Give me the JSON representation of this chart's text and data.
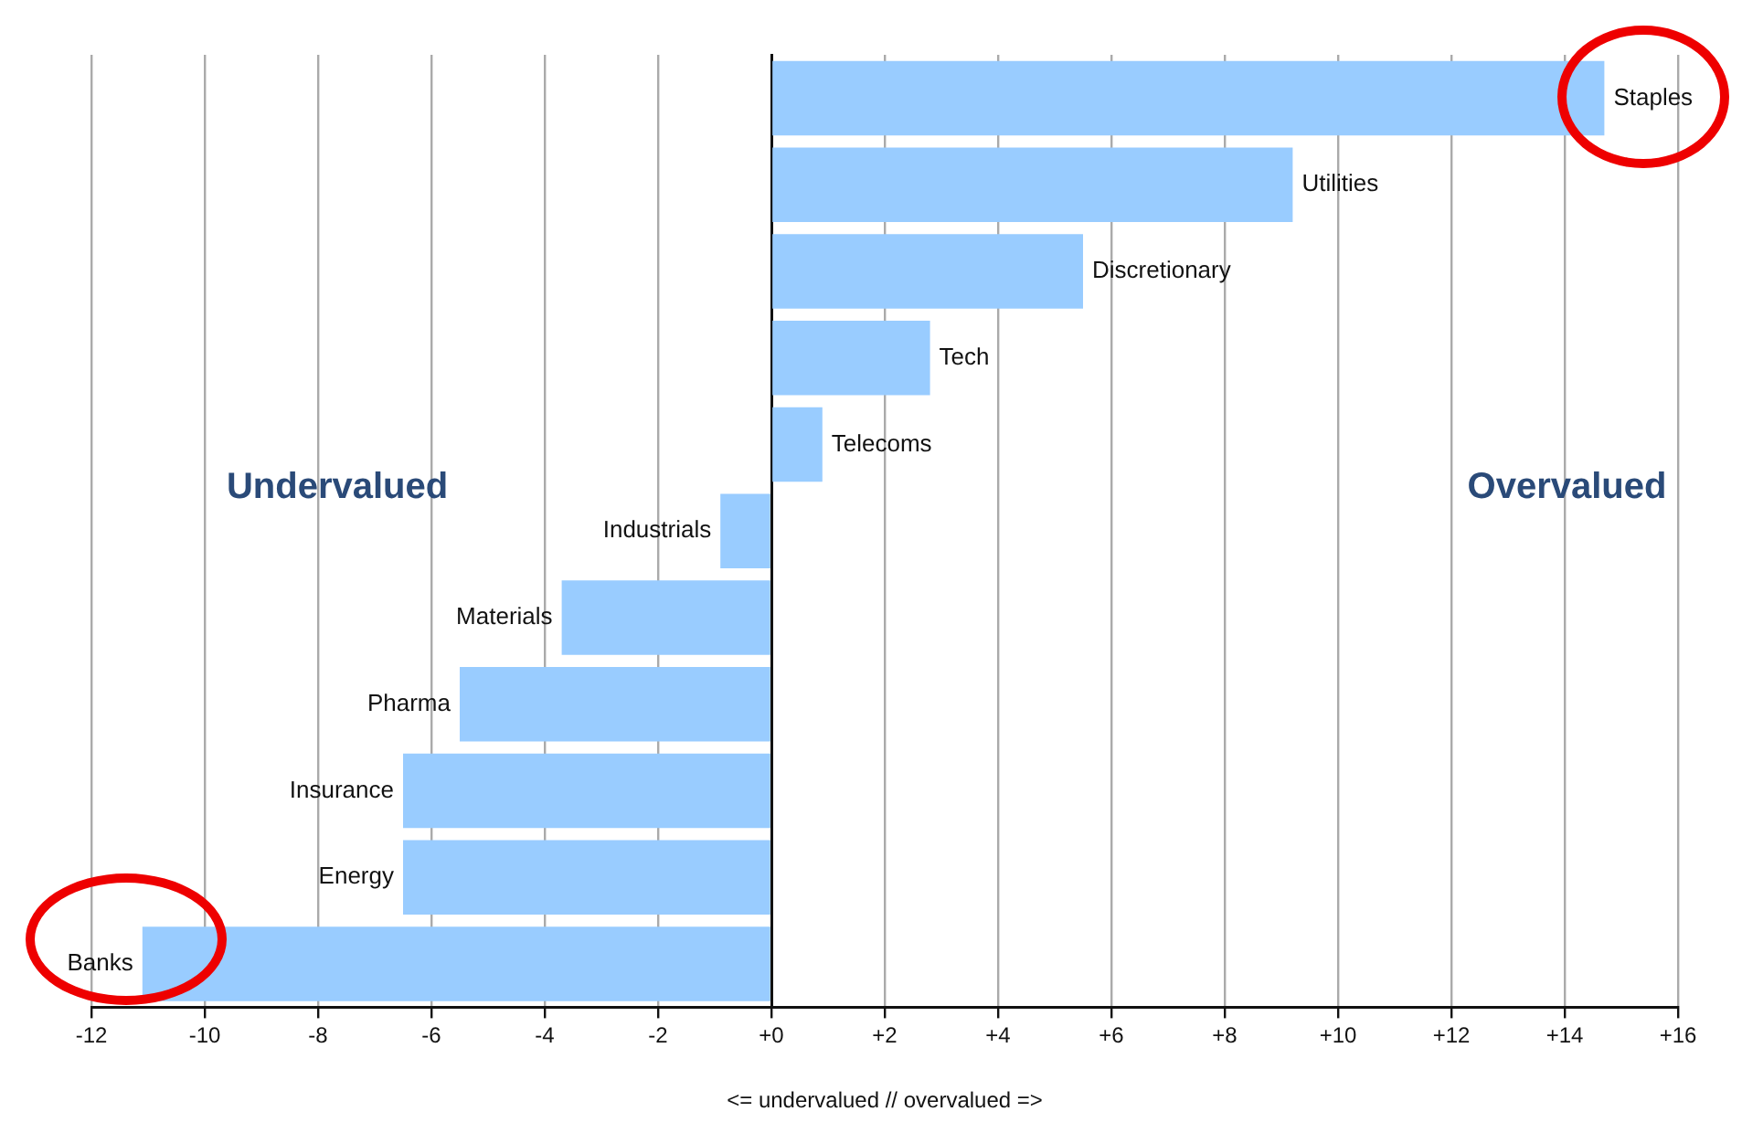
{
  "chart_data": {
    "type": "bar",
    "orientation": "horizontal",
    "xlabel": "<= undervalued // overvalued =>",
    "annotations": [
      "Undervalued",
      "Overvalued"
    ],
    "categories": [
      "Staples",
      "Utilities",
      "Discretionary",
      "Tech",
      "Telecoms",
      "Industrials",
      "Materials",
      "Pharma",
      "Insurance",
      "Energy",
      "Banks"
    ],
    "values": [
      14.7,
      9.2,
      5.5,
      2.8,
      0.9,
      -0.9,
      -3.7,
      -5.5,
      -6.5,
      -6.5,
      -11.1
    ],
    "color": "#99ccff",
    "xlim": [
      -12,
      16
    ],
    "xticks": [
      -12,
      -10,
      -8,
      -6,
      -4,
      -2,
      {
        "value": 0,
        "label": "+0"
      },
      {
        "value": 2,
        "label": "+2"
      },
      {
        "value": 4,
        "label": "+4"
      },
      {
        "value": 6,
        "label": "+6"
      },
      {
        "value": 8,
        "label": "+8"
      },
      {
        "value": 10,
        "label": "+10"
      },
      {
        "value": 12,
        "label": "+12"
      },
      {
        "value": 14,
        "label": "+14"
      },
      {
        "value": 16,
        "label": "+16"
      }
    ],
    "grid": "x",
    "tick_labels": "x",
    "legend": false
  }
}
